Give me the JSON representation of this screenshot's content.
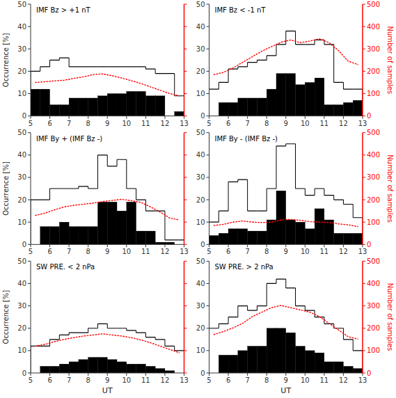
{
  "chart_data": [
    {
      "type": "histogram",
      "title": "IMF Bz > +1 nT",
      "y_label": "Occurrence [%]",
      "bins": [
        5,
        5.5,
        6,
        6.5,
        7,
        7.5,
        8,
        8.5,
        9,
        9.5,
        10,
        10.5,
        11,
        11.5,
        12,
        12.5,
        13
      ],
      "series": [
        {
          "type": "step",
          "color": "black",
          "values": [
            20,
            22,
            25,
            26,
            22,
            22,
            22,
            22,
            22,
            22,
            22,
            22,
            21,
            19,
            19,
            9
          ]
        },
        {
          "type": "bar",
          "color": "black",
          "values": [
            12,
            12,
            5,
            5,
            8,
            8,
            8,
            9,
            10,
            10,
            11,
            11,
            9,
            9,
            0,
            2
          ]
        },
        {
          "type": "line",
          "color": "red",
          "line_style": "dotted",
          "axis": "y2",
          "x": [
            5.25,
            5.75,
            6.25,
            6.75,
            7.25,
            7.75,
            8.25,
            8.75,
            9.25,
            9.75,
            10.25,
            10.75,
            11.25,
            11.75,
            12.25,
            12.75
          ],
          "values": [
            150,
            153,
            157,
            160,
            168,
            175,
            185,
            188,
            180,
            170,
            158,
            145,
            130,
            115,
            100,
            90
          ]
        }
      ],
      "xlim": [
        5,
        13
      ],
      "xticks": [
        5,
        6,
        7,
        8,
        9,
        10,
        11,
        12,
        13
      ],
      "ylim": [
        0,
        50
      ],
      "yticks": [
        0,
        10,
        20,
        30,
        40,
        50
      ],
      "y2lim": [
        0,
        500
      ],
      "y2ticks": [
        0,
        100,
        200,
        300,
        400,
        500
      ]
    },
    {
      "type": "histogram",
      "title": "IMF Bz < -1 nT",
      "y2_label": "Number of samples",
      "bins": [
        5,
        5.5,
        6,
        6.5,
        7,
        7.5,
        8,
        8.5,
        9,
        9.5,
        10,
        10.5,
        11,
        11.5,
        12,
        12.5,
        13
      ],
      "series": [
        {
          "type": "step",
          "color": "black",
          "values": [
            12,
            15,
            21,
            22,
            24,
            25,
            27,
            32,
            38,
            32,
            32,
            34,
            32,
            15,
            12,
            12
          ]
        },
        {
          "type": "bar",
          "color": "black",
          "values": [
            0,
            6,
            6,
            8,
            8,
            8,
            12,
            19,
            19,
            14,
            15,
            17,
            5,
            5,
            6,
            7
          ]
        },
        {
          "type": "line",
          "color": "red",
          "line_style": "dotted",
          "axis": "y2",
          "x": [
            5.25,
            5.75,
            6.25,
            6.75,
            7.25,
            7.75,
            8.25,
            8.75,
            9.25,
            9.75,
            10.25,
            10.75,
            11.25,
            11.75,
            12.25,
            12.75
          ],
          "values": [
            185,
            195,
            215,
            240,
            265,
            290,
            310,
            330,
            340,
            328,
            335,
            345,
            328,
            292,
            245,
            230
          ]
        }
      ],
      "xlim": [
        5,
        13
      ],
      "xticks": [
        5,
        6,
        7,
        8,
        9,
        10,
        11,
        12,
        13
      ],
      "ylim": [
        0,
        50
      ],
      "yticks": [
        0,
        10,
        20,
        30,
        40,
        50
      ],
      "y2lim": [
        0,
        500
      ],
      "y2ticks": [
        0,
        100,
        200,
        300,
        400,
        500
      ]
    },
    {
      "type": "histogram",
      "title": "IMF By + (IMF Bz -)",
      "y_label": "Occurrence [%]",
      "bins": [
        5,
        5.5,
        6,
        6.5,
        7,
        7.5,
        8,
        8.5,
        9,
        9.5,
        10,
        10.5,
        11,
        11.5,
        12,
        12.5,
        13
      ],
      "series": [
        {
          "type": "step",
          "color": "black",
          "values": [
            20,
            20,
            25,
            25,
            25,
            26,
            25,
            40,
            35,
            38,
            25,
            20,
            15,
            15,
            2,
            2
          ]
        },
        {
          "type": "bar",
          "color": "black",
          "values": [
            0,
            8,
            8,
            10,
            8,
            8,
            8,
            19,
            19,
            15,
            19,
            6,
            6,
            1,
            1,
            0
          ]
        },
        {
          "type": "line",
          "color": "red",
          "line_style": "dotted",
          "axis": "y2",
          "x": [
            5.25,
            5.75,
            6.25,
            6.75,
            7.25,
            7.75,
            8.25,
            8.75,
            9.25,
            9.75,
            10.25,
            10.75,
            11.25,
            11.75,
            12.25,
            12.75
          ],
          "values": [
            130,
            140,
            155,
            168,
            175,
            180,
            185,
            192,
            197,
            202,
            196,
            188,
            168,
            145,
            118,
            110
          ]
        }
      ],
      "xlim": [
        5,
        13
      ],
      "xticks": [
        5,
        6,
        7,
        8,
        9,
        10,
        11,
        12,
        13
      ],
      "ylim": [
        0,
        50
      ],
      "yticks": [
        0,
        10,
        20,
        30,
        40,
        50
      ],
      "y2lim": [
        0,
        500
      ],
      "y2ticks": [
        0,
        100,
        200,
        300,
        400,
        500
      ]
    },
    {
      "type": "histogram",
      "title": "IMF By - (IMF Bz -)",
      "y2_label": "Number of samples",
      "bins": [
        5,
        5.5,
        6,
        6.5,
        7,
        7.5,
        8,
        8.5,
        9,
        9.5,
        10,
        10.5,
        11,
        11.5,
        12,
        12.5,
        13
      ],
      "series": [
        {
          "type": "step",
          "color": "black",
          "values": [
            10,
            15,
            28,
            29,
            15,
            15,
            25,
            44,
            45,
            25,
            22,
            25,
            22,
            20,
            18,
            12
          ]
        },
        {
          "type": "bar",
          "color": "black",
          "values": [
            4,
            5,
            7,
            7,
            6,
            6,
            11,
            24,
            11,
            10,
            7,
            16,
            11,
            5,
            5,
            5
          ]
        },
        {
          "type": "line",
          "color": "red",
          "line_style": "dotted",
          "axis": "y2",
          "x": [
            5.25,
            5.75,
            6.25,
            6.75,
            7.25,
            7.75,
            8.25,
            8.75,
            9.25,
            9.75,
            10.25,
            10.75,
            11.25,
            11.75,
            12.25,
            12.75
          ],
          "values": [
            85,
            90,
            100,
            105,
            100,
            98,
            100,
            110,
            112,
            108,
            102,
            100,
            98,
            92,
            88,
            80
          ]
        }
      ],
      "xlim": [
        5,
        13
      ],
      "xticks": [
        5,
        6,
        7,
        8,
        9,
        10,
        11,
        12,
        13
      ],
      "ylim": [
        0,
        50
      ],
      "yticks": [
        0,
        10,
        20,
        30,
        40,
        50
      ],
      "y2lim": [
        0,
        500
      ],
      "y2ticks": [
        0,
        100,
        200,
        300,
        400,
        500
      ]
    },
    {
      "type": "histogram",
      "title": "SW PRE. < 2 nPa",
      "x_label": "UT",
      "y_label": "Occurrence [%]",
      "bins": [
        5,
        5.5,
        6,
        6.5,
        7,
        7.5,
        8,
        8.5,
        9,
        9.5,
        10,
        10.5,
        11,
        11.5,
        12,
        12.5,
        13
      ],
      "series": [
        {
          "type": "step",
          "color": "black",
          "values": [
            12,
            12,
            15,
            17,
            18,
            18,
            20,
            22,
            20,
            20,
            19,
            18,
            16,
            15,
            12,
            10
          ]
        },
        {
          "type": "bar",
          "color": "black",
          "values": [
            0,
            3,
            3,
            4,
            5,
            6,
            7,
            7,
            6,
            5,
            4,
            4,
            3,
            2,
            1,
            0
          ]
        },
        {
          "type": "line",
          "color": "red",
          "line_style": "dotted",
          "axis": "y2",
          "x": [
            5.25,
            5.75,
            6.25,
            6.75,
            7.25,
            7.75,
            8.25,
            8.75,
            9.25,
            9.75,
            10.25,
            10.75,
            11.25,
            11.75,
            12.25,
            12.75
          ],
          "values": [
            120,
            128,
            140,
            150,
            158,
            165,
            170,
            175,
            170,
            165,
            158,
            148,
            135,
            120,
            105,
            90
          ]
        }
      ],
      "xlim": [
        5,
        13
      ],
      "xticks": [
        5,
        6,
        7,
        8,
        9,
        10,
        11,
        12,
        13
      ],
      "ylim": [
        0,
        50
      ],
      "yticks": [
        0,
        10,
        20,
        30,
        40,
        50
      ],
      "y2lim": [
        0,
        500
      ],
      "y2ticks": [
        0,
        100,
        200,
        300,
        400,
        500
      ]
    },
    {
      "type": "histogram",
      "title": "SW PRE. > 2 nPa",
      "x_label": "UT",
      "y2_label": "Number of samples",
      "bins": [
        5,
        5.5,
        6,
        6.5,
        7,
        7.5,
        8,
        8.5,
        9,
        9.5,
        10,
        10.5,
        11,
        11.5,
        12,
        12.5,
        13
      ],
      "series": [
        {
          "type": "step",
          "color": "black",
          "values": [
            20,
            22,
            25,
            30,
            28,
            30,
            40,
            42,
            38,
            30,
            28,
            25,
            22,
            20,
            15,
            10
          ]
        },
        {
          "type": "bar",
          "color": "black",
          "values": [
            0,
            8,
            8,
            10,
            12,
            12,
            20,
            20,
            18,
            12,
            10,
            9,
            5,
            5,
            3,
            2
          ]
        },
        {
          "type": "line",
          "color": "red",
          "line_style": "dotted",
          "axis": "y2",
          "x": [
            5.25,
            5.75,
            6.25,
            6.75,
            7.25,
            7.75,
            8.25,
            8.75,
            9.25,
            9.75,
            10.25,
            10.75,
            11.25,
            11.75,
            12.25,
            12.75
          ],
          "values": [
            172,
            185,
            202,
            222,
            252,
            272,
            292,
            302,
            292,
            282,
            272,
            252,
            222,
            192,
            162,
            152
          ]
        }
      ],
      "xlim": [
        5,
        13
      ],
      "xticks": [
        5,
        6,
        7,
        8,
        9,
        10,
        11,
        12,
        13
      ],
      "ylim": [
        0,
        50
      ],
      "yticks": [
        0,
        10,
        20,
        30,
        40,
        50
      ],
      "y2lim": [
        0,
        500
      ],
      "y2ticks": [
        0,
        100,
        200,
        300,
        400,
        500
      ]
    }
  ]
}
